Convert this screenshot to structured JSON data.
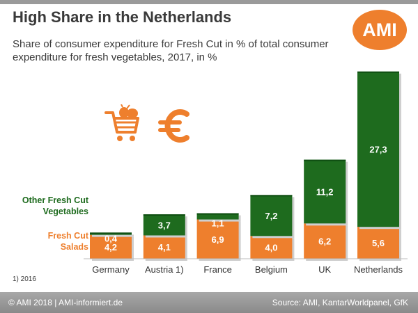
{
  "header": {
    "title": "High Share in the Netherlands",
    "subtitle": "Share of consumer expenditure for Fresh Cut in % of total consumer expenditure for fresh vegetables, 2017,  in %",
    "logo_text": "AMI"
  },
  "footnote": "1) 2016",
  "footer": {
    "left": "© AMI 2018 | AMI-informiert.de",
    "right": "Source: AMI, KantarWorldpanel, GfK"
  },
  "icons": [
    "shopping-cart-vegetables-icon",
    "euro-icon"
  ],
  "colors": {
    "orange": "#ee7f2d",
    "green": "#1e6b1e",
    "dark_green": "#0f4d12"
  },
  "chart_data": {
    "type": "bar",
    "stacked": true,
    "categories": [
      "Germany",
      "Austria 1)",
      "France",
      "Belgium",
      "UK",
      "Netherlands"
    ],
    "series": [
      {
        "name": "Fresh Cut\nSalads",
        "values": [
          4.2,
          4.1,
          6.9,
          4.0,
          6.2,
          5.6
        ],
        "labels": [
          "4,2",
          "4,1",
          "6,9",
          "4,0",
          "6,2",
          "5,6"
        ],
        "color": "#ee7f2d"
      },
      {
        "name": "Other Fresh Cut\nVegetables",
        "values": [
          0.4,
          3.7,
          1.1,
          7.2,
          11.2,
          27.3
        ],
        "labels": [
          "0,4",
          "3,7",
          "1,1",
          "7,2",
          "11,2",
          "27,3"
        ],
        "color": "#1e6b1e"
      }
    ],
    "ylim": [
      0,
      33
    ]
  }
}
